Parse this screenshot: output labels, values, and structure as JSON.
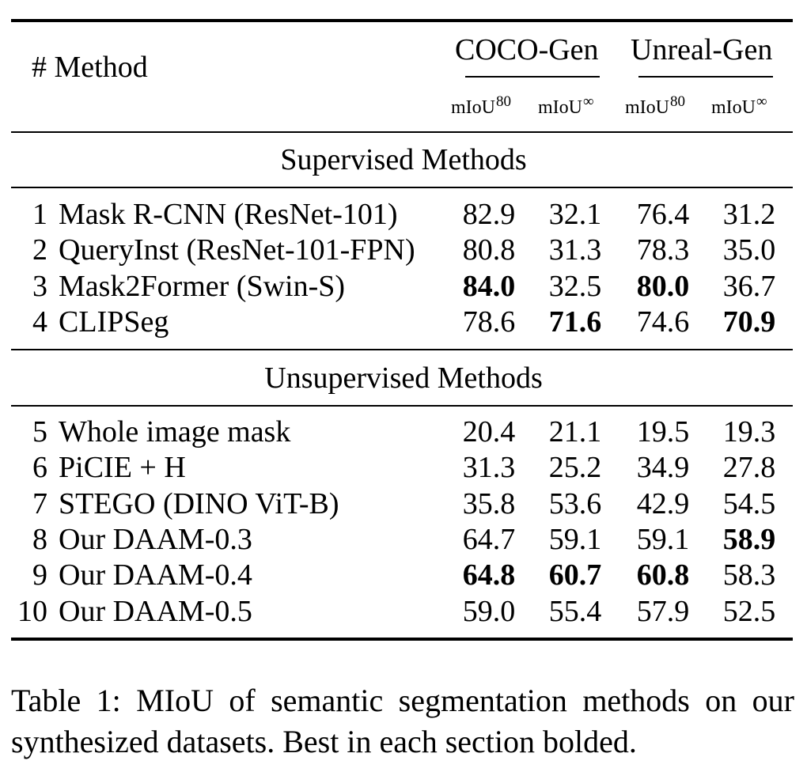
{
  "table": {
    "method_header": "# Method",
    "groups": [
      {
        "name": "COCO-Gen",
        "metrics": [
          {
            "base": "mIoU",
            "sup": "80"
          },
          {
            "base": "mIoU",
            "sup": "∞"
          }
        ]
      },
      {
        "name": "Unreal-Gen",
        "metrics": [
          {
            "base": "mIoU",
            "sup": "80"
          },
          {
            "base": "mIoU",
            "sup": "∞"
          }
        ]
      }
    ],
    "sections": [
      {
        "title": "Supervised Methods",
        "rows": [
          {
            "idx": "1",
            "method": "Mask R-CNN (ResNet-101)",
            "values": [
              "82.9",
              "32.1",
              "76.4",
              "31.2"
            ],
            "bold": [
              false,
              false,
              false,
              false
            ]
          },
          {
            "idx": "2",
            "method": "QueryInst (ResNet-101-FPN)",
            "values": [
              "80.8",
              "31.3",
              "78.3",
              "35.0"
            ],
            "bold": [
              false,
              false,
              false,
              false
            ]
          },
          {
            "idx": "3",
            "method": "Mask2Former (Swin-S)",
            "values": [
              "84.0",
              "32.5",
              "80.0",
              "36.7"
            ],
            "bold": [
              true,
              false,
              true,
              false
            ]
          },
          {
            "idx": "4",
            "method": "CLIPSeg",
            "values": [
              "78.6",
              "71.6",
              "74.6",
              "70.9"
            ],
            "bold": [
              false,
              true,
              false,
              true
            ]
          }
        ]
      },
      {
        "title": "Unsupervised Methods",
        "rows": [
          {
            "idx": "5",
            "method": "Whole image mask",
            "values": [
              "20.4",
              "21.1",
              "19.5",
              "19.3"
            ],
            "bold": [
              false,
              false,
              false,
              false
            ]
          },
          {
            "idx": "6",
            "method": "PiCIE + H",
            "values": [
              "31.3",
              "25.2",
              "34.9",
              "27.8"
            ],
            "bold": [
              false,
              false,
              false,
              false
            ]
          },
          {
            "idx": "7",
            "method": "STEGO (DINO ViT-B)",
            "values": [
              "35.8",
              "53.6",
              "42.9",
              "54.5"
            ],
            "bold": [
              false,
              false,
              false,
              false
            ]
          },
          {
            "idx": "8",
            "method": "Our DAAM-0.3",
            "values": [
              "64.7",
              "59.1",
              "59.1",
              "58.9"
            ],
            "bold": [
              false,
              false,
              false,
              true
            ]
          },
          {
            "idx": "9",
            "method": "Our DAAM-0.4",
            "values": [
              "64.8",
              "60.7",
              "60.8",
              "58.3"
            ],
            "bold": [
              true,
              true,
              true,
              false
            ]
          },
          {
            "idx": "10",
            "method": "Our DAAM-0.5",
            "values": [
              "59.0",
              "55.4",
              "57.9",
              "52.5"
            ],
            "bold": [
              false,
              false,
              false,
              false
            ]
          }
        ]
      }
    ]
  },
  "caption": "Table 1: MIoU of semantic segmentation methods on our synthesized datasets. Best in each section bolded."
}
